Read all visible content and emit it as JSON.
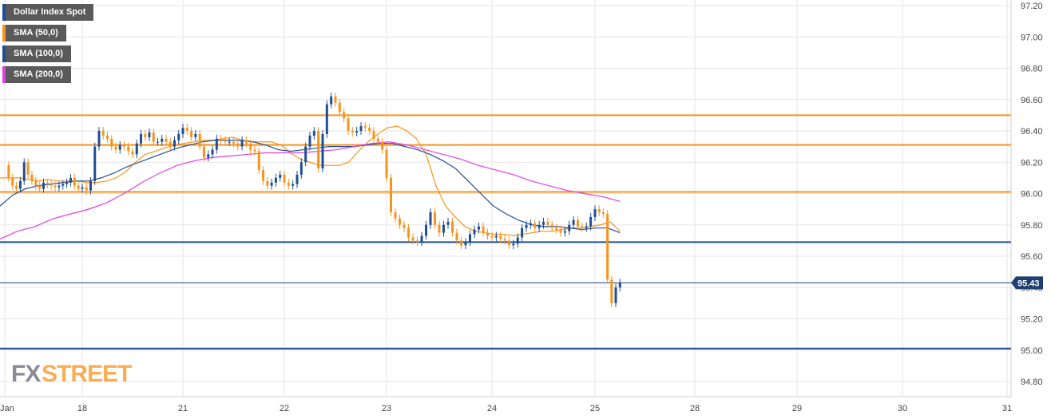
{
  "legend": {
    "items": [
      {
        "label": "Dollar Index Spot",
        "color": "#1f4e96"
      },
      {
        "label": "SMA (50,0)",
        "color": "#f7941d"
      },
      {
        "label": "SMA (100,0)",
        "color": "#1f4e96"
      },
      {
        "label": "SMA (200,0)",
        "color": "#e040e0"
      }
    ]
  },
  "watermark": {
    "fx": "FX",
    "street": "STREET"
  },
  "colors": {
    "up_candle": "#1f4e96",
    "down_candle": "#f7941d",
    "sma50": "#f7941d",
    "sma100": "#1f4e96",
    "sma200": "#e040e0",
    "grid": "#e6e6e6",
    "resistance": "#f7941d",
    "support": "#1f4e96",
    "price_tag_bg": "#1f3f73"
  },
  "chart_data": {
    "type": "line",
    "title": "",
    "xlabel": "",
    "ylabel": "",
    "x_tick_labels": [
      "Jan",
      "18",
      "21",
      "22",
      "23",
      "24",
      "25",
      "28",
      "29",
      "30",
      "31"
    ],
    "y_tick_labels": [
      "97.20",
      "97.00",
      "96.80",
      "96.60",
      "96.40",
      "96.20",
      "96.00",
      "95.80",
      "95.60",
      "95.40",
      "95.20",
      "95.00",
      "94.80"
    ],
    "ylim": [
      94.72,
      97.22
    ],
    "grid": true,
    "legend_position": "top-left",
    "last_price": "95.43",
    "last_price_value": 95.43,
    "horizontal_levels": [
      {
        "value": 96.5,
        "kind": "resistance"
      },
      {
        "value": 96.31,
        "kind": "resistance"
      },
      {
        "value": 96.01,
        "kind": "resistance"
      },
      {
        "value": 95.69,
        "kind": "support"
      },
      {
        "value": 95.01,
        "kind": "support"
      }
    ],
    "series": [
      {
        "name": "Dollar Index Spot",
        "day_tick_index": [
          0,
          20,
          44,
          68,
          92,
          116,
          140,
          164,
          188,
          212,
          236
        ],
        "values": [
          96.18,
          96.1,
          96.05,
          96.03,
          96.08,
          96.2,
          96.12,
          96.08,
          96.05,
          96.03,
          96.07,
          96.06,
          96.05,
          96.04,
          96.05,
          96.06,
          96.07,
          96.1,
          96.05,
          96.03,
          96.04,
          96.02,
          96.08,
          96.3,
          96.4,
          96.37,
          96.35,
          96.3,
          96.28,
          96.31,
          96.3,
          96.27,
          96.25,
          96.32,
          96.38,
          96.36,
          96.39,
          96.33,
          96.33,
          96.35,
          96.33,
          96.3,
          96.34,
          96.38,
          96.42,
          96.4,
          96.36,
          96.38,
          96.3,
          96.23,
          96.25,
          96.28,
          96.35,
          96.34,
          96.33,
          96.33,
          96.32,
          96.3,
          96.34,
          96.32,
          96.28,
          96.27,
          96.15,
          96.08,
          96.05,
          96.07,
          96.1,
          96.12,
          96.07,
          96.05,
          96.06,
          96.12,
          96.2,
          96.3,
          96.37,
          96.4,
          96.16,
          96.38,
          96.57,
          96.62,
          96.58,
          96.52,
          96.48,
          96.4,
          96.39,
          96.4,
          96.43,
          96.42,
          96.4,
          96.35,
          96.33,
          96.28,
          96.1,
          95.88,
          95.84,
          95.8,
          95.78,
          95.72,
          95.7,
          95.69,
          95.73,
          95.8,
          95.88,
          95.8,
          95.75,
          95.8,
          95.82,
          95.75,
          95.7,
          95.67,
          95.69,
          95.74,
          95.77,
          95.79,
          95.75,
          95.73,
          95.72,
          95.73,
          95.71,
          95.7,
          95.67,
          95.68,
          95.72,
          95.78,
          95.8,
          95.81,
          95.78,
          95.8,
          95.82,
          95.8,
          95.78,
          95.77,
          95.75,
          95.76,
          95.8,
          95.83,
          95.79,
          95.78,
          95.79,
          95.85,
          95.9,
          95.88,
          95.87,
          95.45,
          95.3,
          95.4,
          95.43
        ]
      },
      {
        "name": "SMA (50,0)",
        "day_tick_index": [
          0,
          20,
          44,
          68,
          92,
          116,
          140,
          164,
          188,
          212,
          236
        ],
        "values": [
          96.1,
          96.1,
          96.1,
          96.09,
          96.08,
          96.09,
          96.08,
          96.08,
          96.08,
          96.07,
          96.07,
          96.08,
          96.1,
          96.14,
          96.2,
          96.25,
          96.27,
          96.29,
          96.31,
          96.32,
          96.33,
          96.34,
          96.34,
          96.35,
          96.36,
          96.34,
          96.33,
          96.33,
          96.33,
          96.31,
          96.26,
          96.22,
          96.2,
          96.18,
          96.18,
          96.18,
          96.2,
          96.27,
          96.33,
          96.38,
          96.42,
          96.43,
          96.4,
          96.35,
          96.25,
          96.05,
          95.92,
          95.85,
          95.79,
          95.76,
          95.75,
          95.74,
          95.74,
          95.73,
          95.74,
          95.75,
          95.76,
          95.76,
          95.77,
          95.78,
          95.78,
          95.79,
          95.8,
          95.82,
          95.76
        ]
      },
      {
        "name": "SMA (100,0)",
        "day_tick_index": [
          0,
          20,
          44,
          68,
          92,
          116,
          140,
          164,
          188,
          212,
          236
        ],
        "values": [
          95.92,
          95.99,
          96.03,
          96.05,
          96.06,
          96.07,
          96.08,
          96.08,
          96.1,
          96.13,
          96.17,
          96.2,
          96.23,
          96.26,
          96.29,
          96.31,
          96.33,
          96.34,
          96.34,
          96.34,
          96.33,
          96.31,
          96.28,
          96.27,
          96.28,
          96.29,
          96.3,
          96.3,
          96.3,
          96.31,
          96.32,
          96.32,
          96.3,
          96.28,
          96.25,
          96.21,
          96.16,
          96.08,
          96.0,
          95.92,
          95.87,
          95.83,
          95.8,
          95.79,
          95.79,
          95.78,
          95.77,
          95.78,
          95.78,
          95.75
        ]
      },
      {
        "name": "SMA (200,0)",
        "day_tick_index": [
          0,
          20,
          44,
          68,
          92,
          116,
          140,
          164,
          188,
          212,
          236
        ],
        "values": [
          95.71,
          95.76,
          95.79,
          95.84,
          95.87,
          95.9,
          95.94,
          96.0,
          96.07,
          96.13,
          96.18,
          96.21,
          96.23,
          96.24,
          96.25,
          96.26,
          96.26,
          96.26,
          96.27,
          96.28,
          96.3,
          96.32,
          96.33,
          96.31,
          96.28,
          96.25,
          96.22,
          96.18,
          96.15,
          96.12,
          96.08,
          96.05,
          96.02,
          96.0,
          95.98,
          95.95
        ]
      }
    ]
  }
}
